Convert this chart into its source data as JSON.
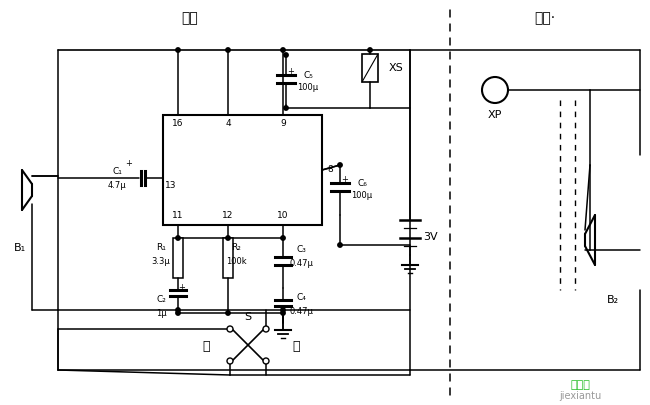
{
  "bg_color": "#ffffff",
  "lc": "#000000",
  "title_jia": "甲机",
  "title_yi": "乙机·",
  "B1": "B₁",
  "B2": "B₂",
  "XS": "XS",
  "XP": "XP",
  "S_label": "S",
  "ting": "听",
  "jiang": "讲",
  "batt": "3V",
  "C1a": "C₁",
  "C1b": "4.7μ",
  "C2a": "C₂",
  "C2b": "1μ",
  "C3a": "C₃",
  "C3b": "0.47μ",
  "C4a": "C₄",
  "C4b": "0.47μ",
  "C5a": "C₅",
  "C5b": "100μ",
  "C6a": "C₆",
  "C6b": "100μ",
  "R1a": "R₁",
  "R1b": "3.3μ",
  "R2a": "R₂",
  "R2b": "100k",
  "p16": "16",
  "p4": "4",
  "p9": "9",
  "p8": "8",
  "p11": "11",
  "p12": "12",
  "p10": "10",
  "p13": "13",
  "wm1": "接线图",
  "wm2": "jiexiantu"
}
